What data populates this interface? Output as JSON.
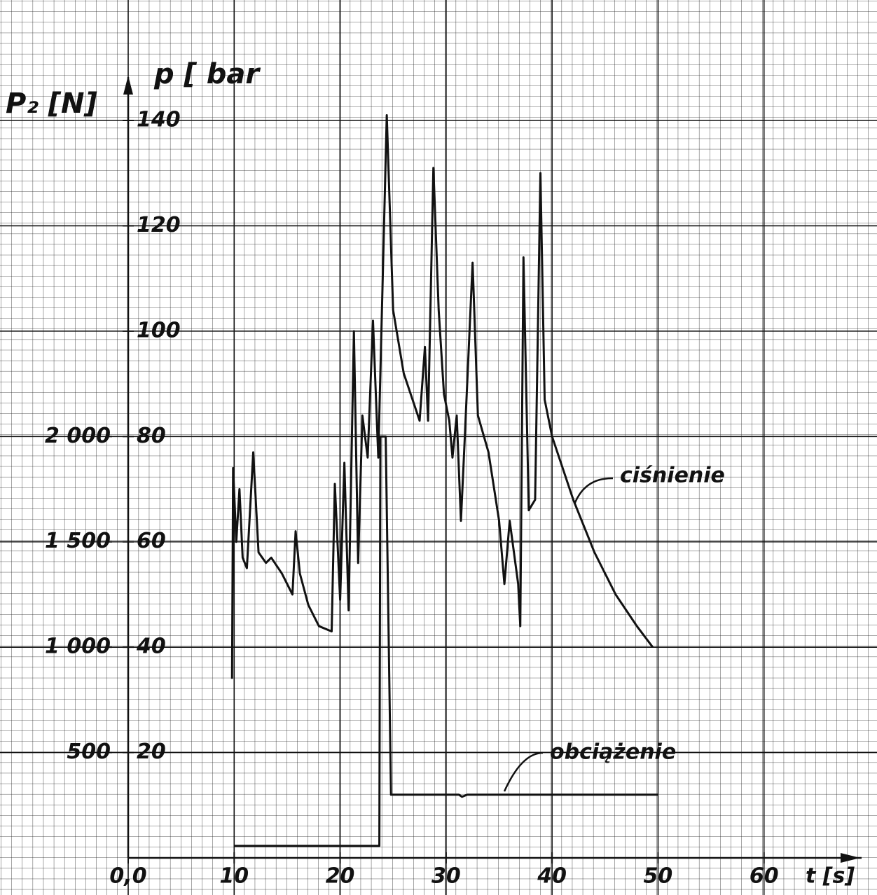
{
  "chart_data": {
    "type": "line",
    "xlabel": "t [s]",
    "ylabel": "p [ bar",
    "y2label": "P₂ [N]",
    "xlim": [
      0,
      70
    ],
    "ylim": [
      0,
      140
    ],
    "y2lim": [
      0,
      3500
    ],
    "xticks": [
      {
        "value": 0,
        "label": "0,0"
      },
      10,
      20,
      30,
      40,
      50,
      60
    ],
    "yticks": [
      20,
      40,
      60,
      80,
      100,
      120,
      140
    ],
    "y2ticks": [
      500,
      {
        "value": 1000,
        "label": "1 000"
      },
      {
        "value": 1500,
        "label": "1 500"
      },
      {
        "value": 2000,
        "label": "2 000"
      }
    ],
    "grid": true,
    "annotations": [
      "ciśnienie",
      "obciążenie"
    ],
    "series": [
      {
        "color": "#111111",
        "x": [
          9.8,
          9.9,
          10.2,
          10.5,
          10.8,
          11.2,
          11.8,
          12.3,
          13,
          13.5,
          14.5,
          15.5,
          15.8,
          16.2,
          17,
          18,
          19.2,
          19.5,
          20,
          20.4,
          20.8,
          21.3,
          21.7,
          22.1,
          22.6,
          23.1,
          23.6,
          24.4,
          25,
          26,
          27.5,
          28,
          28.3,
          28.8,
          29.3,
          29.8,
          30.3,
          30.6,
          31,
          31.4,
          31.7,
          32.5,
          33,
          34,
          35,
          35.5,
          36,
          36.8,
          37,
          37.3,
          37.8,
          38.4,
          38.9,
          39.3,
          40,
          42,
          44,
          46,
          48,
          49.5
        ],
        "values": [
          34,
          74,
          60,
          70,
          57,
          55,
          77,
          58,
          56,
          57,
          54,
          50,
          62,
          54,
          48,
          44,
          43,
          71,
          49,
          75,
          47,
          100,
          56,
          84,
          76,
          102,
          76,
          141,
          104,
          92,
          83,
          97,
          83,
          131,
          104,
          88,
          83,
          76,
          84,
          64,
          77,
          113,
          84,
          77,
          64,
          52,
          64,
          52,
          44,
          114,
          66,
          68,
          130,
          87,
          80,
          68,
          58,
          50,
          44,
          40
        ]
      },
      {
        "color": "#111111",
        "axis": "y2",
        "x": [
          10,
          23.7,
          23.8,
          24.3,
          24.8,
          31.2,
          31.5,
          32,
          50
        ],
        "values": [
          57,
          57,
          2000,
          2000,
          300,
          300,
          290,
          300,
          300
        ]
      }
    ]
  }
}
